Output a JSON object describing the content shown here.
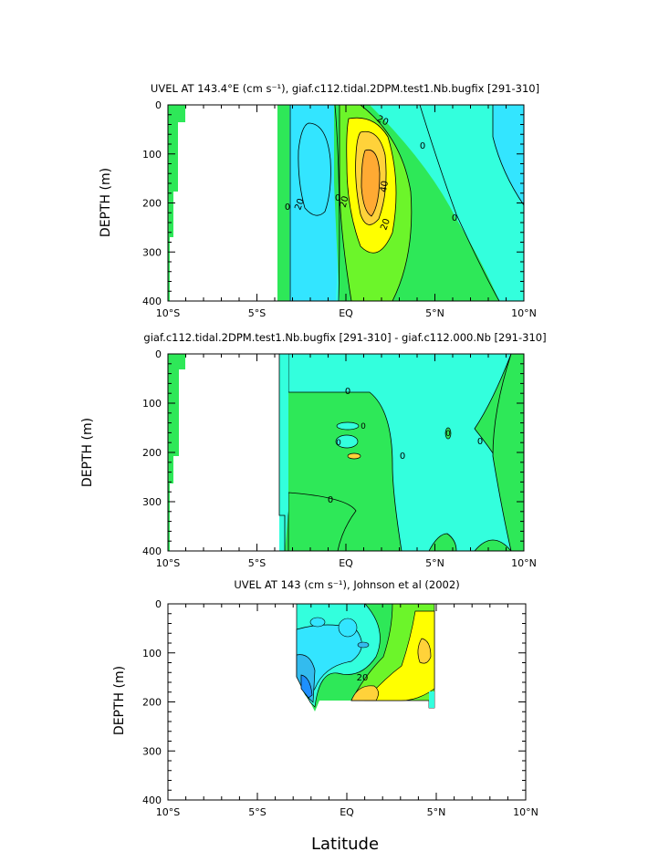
{
  "colors": {
    "band_neg_30": "#1e90ff",
    "band_neg_20": "#33bbee",
    "band_neg_10": "#33e5ff",
    "band_0": "#33ffdd",
    "band_10": "#2ee858",
    "band_20": "#6cf52a",
    "band_30": "#ffff00",
    "band_40": "#ffd23a",
    "band_50": "#ffaa33",
    "contour": "#000000",
    "land": "#ffffff"
  },
  "chart_data": [
    {
      "type": "heatmap",
      "title": "UVEL AT 143.4°E (cm s⁻¹), giaf.c112.tidal.2DPM.test1.Nb.bugfix [291-310]",
      "xlabel": "",
      "ylabel": "DEPTH (m)",
      "xlim": [
        -10,
        10
      ],
      "ylim": [
        400,
        0
      ],
      "x_ticks": [
        "10°S",
        "5°S",
        "EQ",
        "5°N",
        "10°N"
      ],
      "y_ticks": [
        "0",
        "100",
        "200",
        "300",
        "400"
      ],
      "contour_labels": [
        "0",
        "20",
        "0",
        "20",
        "40",
        "20",
        "0",
        "20",
        "0"
      ],
      "features": [
        {
          "name": "westward SEC core",
          "lat": -2,
          "depth": 150,
          "uvel": -20
        },
        {
          "name": "EUC core",
          "lat": 1.5,
          "depth": 180,
          "uvel": 50
        },
        {
          "name": "eastern shallow band",
          "lat": 8,
          "depth": 50,
          "uvel": -10
        }
      ]
    },
    {
      "type": "heatmap",
      "title": "giaf.c112.tidal.2DPM.test1.Nb.bugfix [291-310] - giaf.c112.000.Nb [291-310]",
      "xlabel": "",
      "ylabel": "DEPTH (m)",
      "xlim": [
        -10,
        10
      ],
      "ylim": [
        400,
        0
      ],
      "x_ticks": [
        "10°S",
        "5°S",
        "EQ",
        "5°N",
        "10°N"
      ],
      "y_ticks": [
        "0",
        "100",
        "200",
        "300",
        "400"
      ],
      "contour_labels": [
        "0",
        "0",
        "0",
        "0",
        "0",
        "0",
        "0"
      ],
      "features": [
        {
          "name": "positive difference west",
          "lat": -3,
          "depth": 200,
          "uvel": 5
        },
        {
          "name": "negative difference east",
          "lat": 5,
          "depth": 200,
          "uvel": -5
        }
      ]
    },
    {
      "type": "heatmap",
      "title": "UVEL AT 143 (cm s⁻¹), Johnson et al (2002)",
      "xlabel": "Latitude",
      "ylabel": "DEPTH (m)",
      "xlim": [
        -10,
        10
      ],
      "ylim": [
        400,
        0
      ],
      "x_ticks": [
        "10°S",
        "5°S",
        "EQ",
        "5°N",
        "10°N"
      ],
      "y_ticks": [
        "0",
        "100",
        "200",
        "300",
        "400"
      ],
      "contour_labels": [
        "20"
      ],
      "data_extent": {
        "lat": [
          -2.7,
          5
        ],
        "depth": [
          10,
          220
        ]
      },
      "features": [
        {
          "name": "westward core",
          "lat": -1.5,
          "depth": 150,
          "uvel": -30
        },
        {
          "name": "EUC core",
          "lat": 1.5,
          "depth": 190,
          "uvel": 40
        },
        {
          "name": "surface jet",
          "lat": 4,
          "depth": 100,
          "uvel": 30
        }
      ]
    }
  ]
}
